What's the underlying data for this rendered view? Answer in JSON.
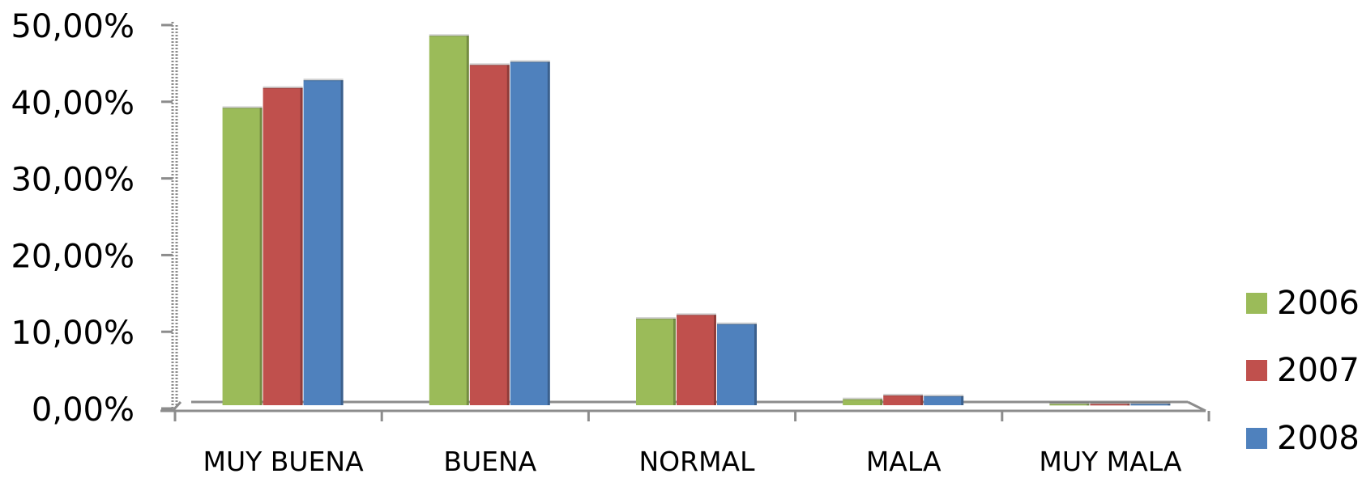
{
  "chart_data": {
    "type": "bar",
    "categories": [
      "MUY BUENA",
      "BUENA",
      "NORMAL",
      "MALA",
      "MUY MALA"
    ],
    "series": [
      {
        "name": "2006",
        "color": "#9bbb59",
        "values": [
          0.392,
          0.486,
          0.117,
          0.012,
          0.006
        ]
      },
      {
        "name": "2007",
        "color": "#c0504d",
        "values": [
          0.418,
          0.448,
          0.122,
          0.017,
          0.006
        ]
      },
      {
        "name": "2008",
        "color": "#4f81bd",
        "values": [
          0.428,
          0.452,
          0.11,
          0.016,
          0.006
        ]
      }
    ],
    "yticks": [
      "0,00%",
      "10,00%",
      "20,00%",
      "30,00%",
      "40,00%",
      "50,00%"
    ],
    "ylim": [
      0,
      0.5
    ],
    "grid": false,
    "legend_position": "right",
    "title": "",
    "xlabel": "",
    "ylabel": ""
  }
}
